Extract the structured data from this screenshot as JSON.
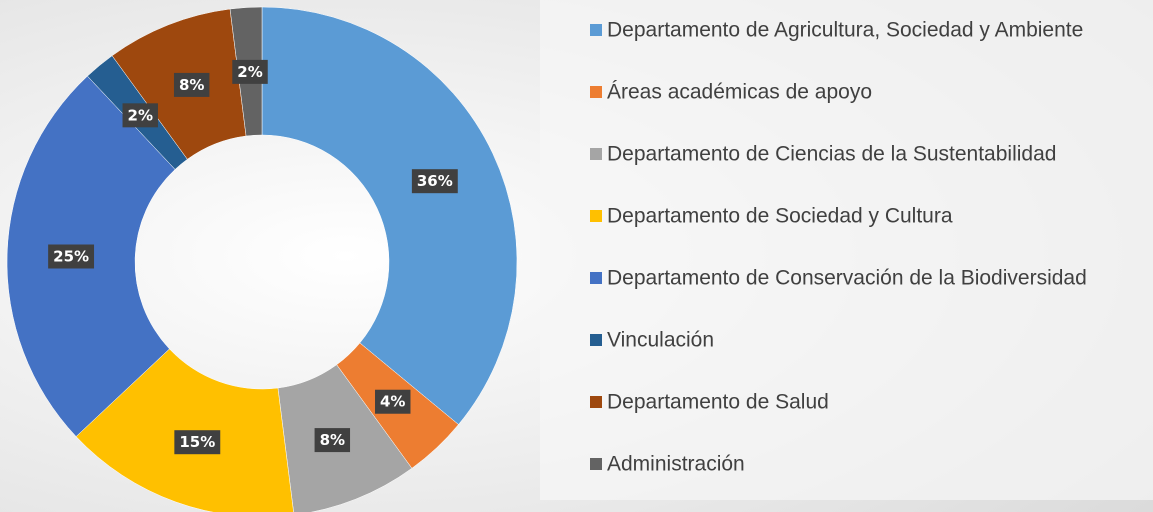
{
  "chart_data": {
    "type": "donut",
    "categories": [
      "Departamento de Agricultura, Sociedad y Ambiente",
      "Áreas académicas de apoyo",
      "Departamento de Ciencias de la Sustentabilidad",
      "Departamento de Sociedad y Cultura",
      "Departamento de Conservación de la Biodiversidad",
      "Vinculación",
      "Departamento de Salud",
      "Administración"
    ],
    "values": [
      36,
      4,
      8,
      15,
      25,
      2,
      8,
      2
    ],
    "value_labels": [
      "36%",
      "4%",
      "8%",
      "15%",
      "25%",
      "2%",
      "8%",
      "2%"
    ],
    "colors": [
      "#5b9bd5",
      "#ed7d31",
      "#a5a5a5",
      "#ffc000",
      "#4472c4",
      "#255e91",
      "#9e480e",
      "#636363"
    ],
    "legend": "right"
  }
}
